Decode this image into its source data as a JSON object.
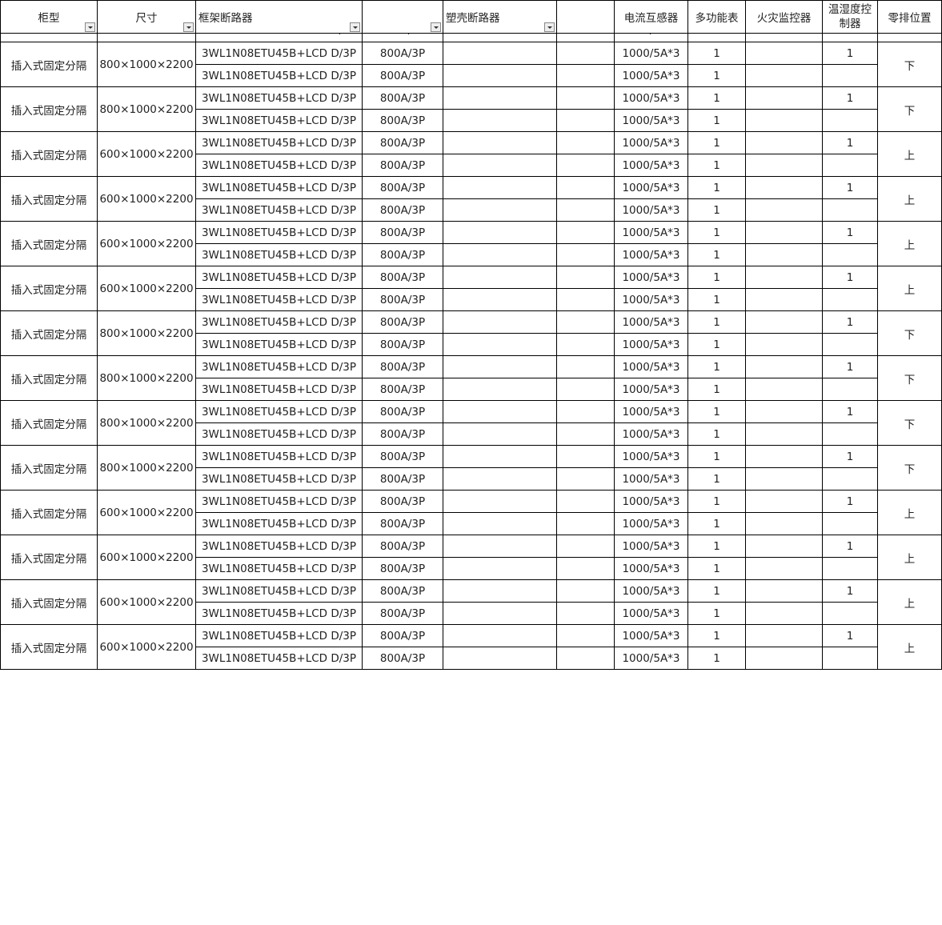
{
  "headers": [
    {
      "label": "柜型",
      "filter": true
    },
    {
      "label": "尺寸",
      "filter": true
    },
    {
      "label": "框架断路器",
      "filter": true,
      "align": "left"
    },
    {
      "label": "",
      "filter": true
    },
    {
      "label": "塑壳断路器",
      "filter": true,
      "align": "left"
    },
    {
      "label": "",
      "filter": false
    },
    {
      "label": "电流互感器",
      "filter": false
    },
    {
      "label": "多功能表",
      "filter": false
    },
    {
      "label": "火灾监控器",
      "filter": false
    },
    {
      "label": "温湿度控制器",
      "filter": false
    },
    {
      "label": "零排位置",
      "filter": false
    }
  ],
  "row_template": {
    "type": "插入式固定分隔",
    "breaker": "3WL1N08ETU45B+LCD D/3P",
    "rating": "800A/3P",
    "ct": "1000/5A*3",
    "meter": "1",
    "humidity_first_row": "1"
  },
  "groups": [
    {
      "size": "800×1000×2200",
      "neutral": "下"
    },
    {
      "size": "800×1000×2200",
      "neutral": "下"
    },
    {
      "size": "600×1000×2200",
      "neutral": "上"
    },
    {
      "size": "600×1000×2200",
      "neutral": "上"
    },
    {
      "size": "600×1000×2200",
      "neutral": "上"
    },
    {
      "size": "600×1000×2200",
      "neutral": "上"
    },
    {
      "size": "800×1000×2200",
      "neutral": "下"
    },
    {
      "size": "800×1000×2200",
      "neutral": "下"
    },
    {
      "size": "800×1000×2200",
      "neutral": "下"
    },
    {
      "size": "800×1000×2200",
      "neutral": "下"
    },
    {
      "size": "600×1000×2200",
      "neutral": "上"
    },
    {
      "size": "600×1000×2200",
      "neutral": "上"
    },
    {
      "size": "600×1000×2200",
      "neutral": "上"
    },
    {
      "size": "600×1000×2200",
      "neutral": "上"
    }
  ]
}
